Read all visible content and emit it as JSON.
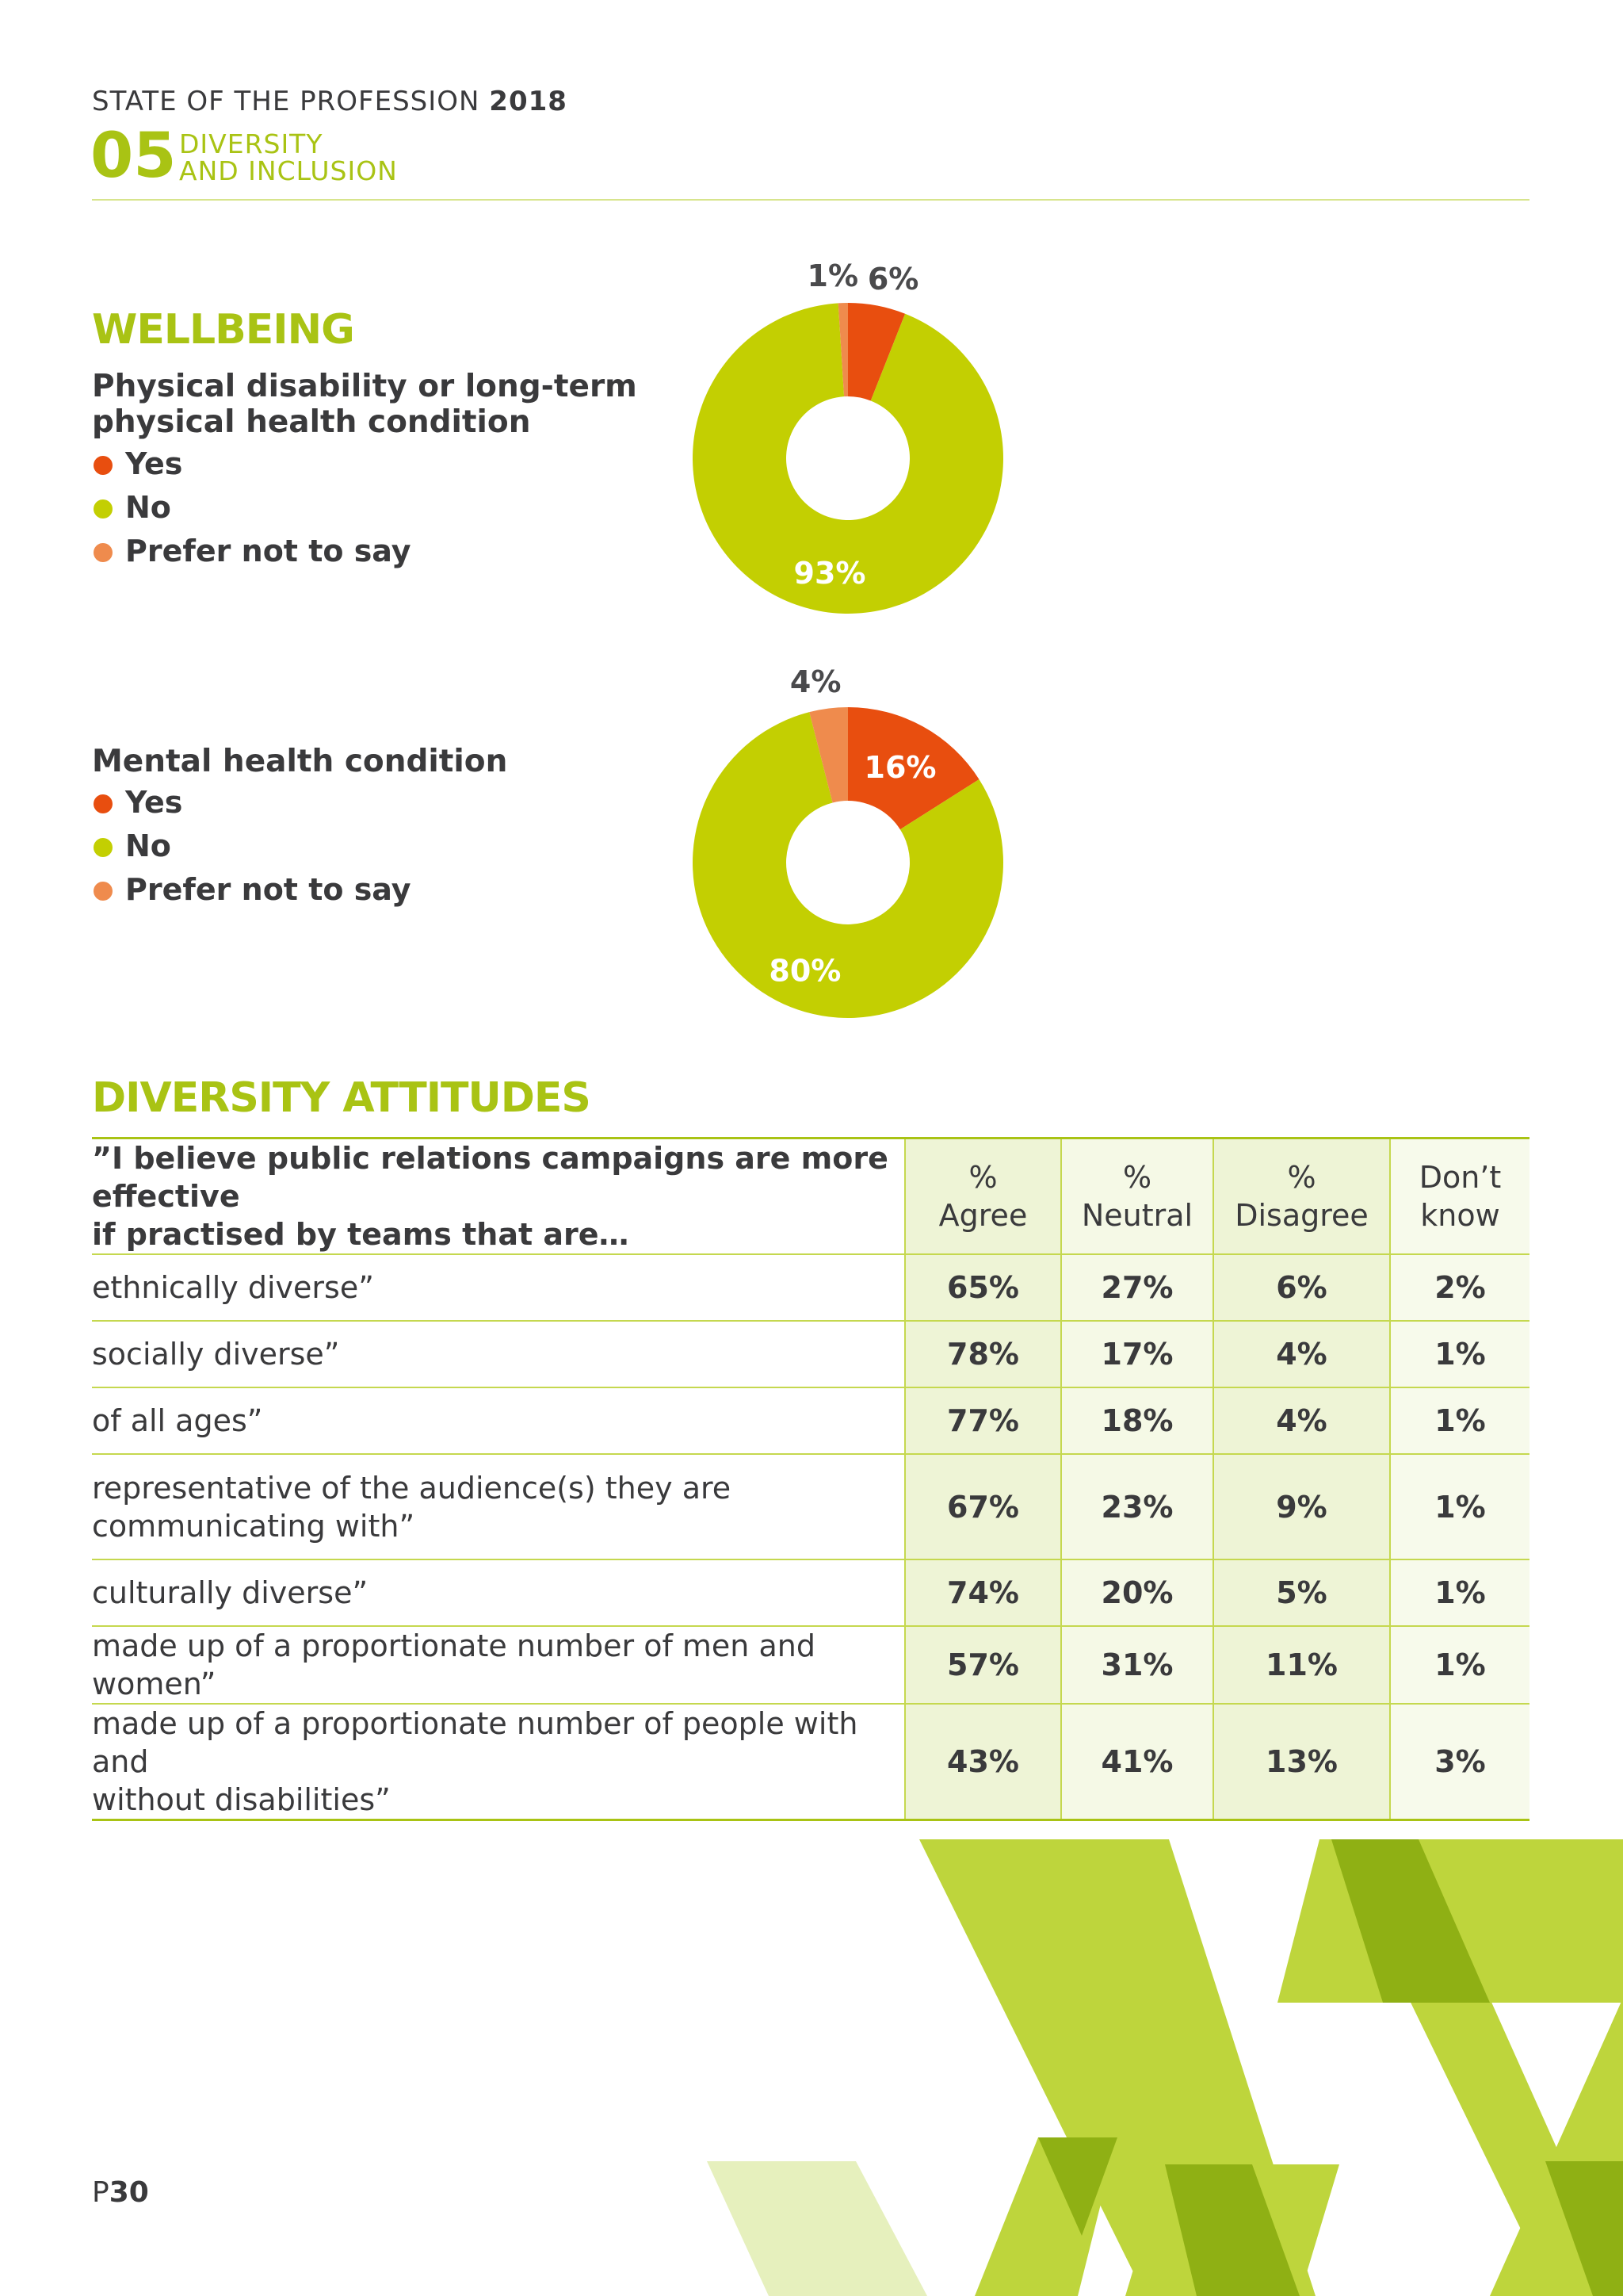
{
  "header": {
    "title": "STATE OF THE PROFESSION",
    "year": "2018",
    "section_number": "05",
    "section_line1": "DIVERSITY",
    "section_line2": "AND INCLUSION"
  },
  "wellbeing": {
    "heading": "WELLBEING",
    "legend": [
      {
        "label": "Yes",
        "color": "#e84e0f"
      },
      {
        "label": "No",
        "color": "#c3cf02"
      },
      {
        "label": "Prefer not to say",
        "color": "#ef8b4d"
      }
    ]
  },
  "physical": {
    "title_line1": "Physical disability or long-term",
    "title_line2": "physical health condition"
  },
  "mental": {
    "title": "Mental health condition"
  },
  "chart_data": [
    {
      "type": "pie",
      "title": "Physical disability or long-term physical health condition",
      "categories": [
        "Yes",
        "No",
        "Prefer not to say"
      ],
      "values": [
        6,
        93,
        1
      ],
      "labels": [
        "6%",
        "93%",
        "1%"
      ],
      "colors": [
        "#e84e0f",
        "#c3cf02",
        "#ef8b4d"
      ],
      "donut": true
    },
    {
      "type": "pie",
      "title": "Mental health condition",
      "categories": [
        "Yes",
        "No",
        "Prefer not to say"
      ],
      "values": [
        16,
        80,
        4
      ],
      "labels": [
        "16%",
        "80%",
        "4%"
      ],
      "colors": [
        "#e84e0f",
        "#c3cf02",
        "#ef8b4d"
      ],
      "donut": true
    }
  ],
  "attitudes": {
    "heading": "DIVERSITY ATTITUDES",
    "question_line1": "”I believe public relations campaigns are more effective",
    "question_line2": "if practised by teams that are…",
    "columns": [
      {
        "line1": "%",
        "line2": "Agree"
      },
      {
        "line1": "%",
        "line2": "Neutral"
      },
      {
        "line1": "%",
        "line2": "Disagree"
      },
      {
        "line1": "Don’t",
        "line2": "know"
      }
    ],
    "rows": [
      {
        "line1": "ethnically diverse”",
        "line2": "",
        "values": [
          "65%",
          "27%",
          "6%",
          "2%"
        ]
      },
      {
        "line1": "socially diverse”",
        "line2": "",
        "values": [
          "78%",
          "17%",
          "4%",
          "1%"
        ]
      },
      {
        "line1": "of all ages”",
        "line2": "",
        "values": [
          "77%",
          "18%",
          "4%",
          "1%"
        ]
      },
      {
        "line1": "representative of the audience(s) they are",
        "line2": "communicating with”",
        "values": [
          "67%",
          "23%",
          "9%",
          "1%"
        ]
      },
      {
        "line1": "culturally diverse”",
        "line2": "",
        "values": [
          "74%",
          "20%",
          "5%",
          "1%"
        ]
      },
      {
        "line1": "made up of a proportionate number of men and women”",
        "line2": "",
        "values": [
          "57%",
          "31%",
          "11%",
          "1%"
        ]
      },
      {
        "line1": "made up of a proportionate number of people with and",
        "line2": "without disabilities”",
        "values": [
          "43%",
          "41%",
          "13%",
          "3%"
        ]
      }
    ]
  },
  "footer": {
    "page_prefix": "P",
    "page_number": "30"
  }
}
